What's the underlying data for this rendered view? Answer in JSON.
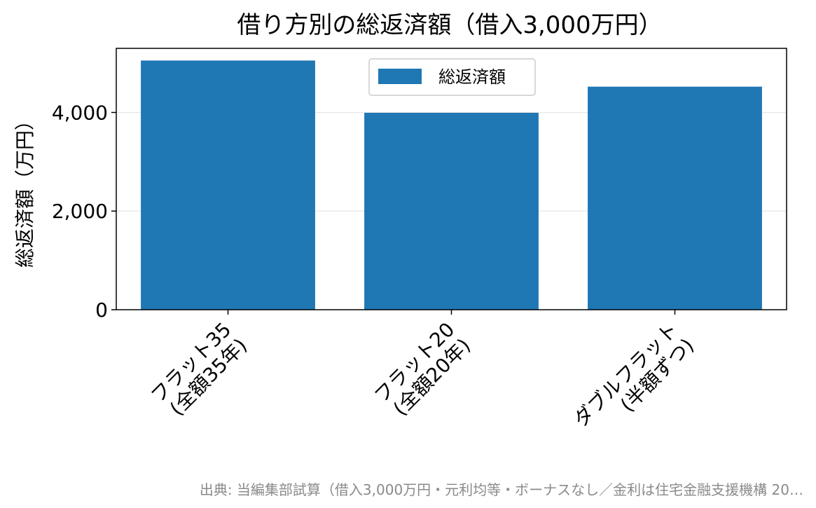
{
  "chart_data": {
    "type": "bar",
    "title": "借り方別の総返済額（借入3,000万円）",
    "xlabel": "",
    "ylabel": "総返済額（万円）",
    "categories": [
      [
        "フラット35",
        "(全額35年)"
      ],
      [
        "フラット20",
        "(全額20年)"
      ],
      [
        "ダブルフラット",
        "(半額ずつ)"
      ]
    ],
    "series": [
      {
        "name": "総返済額",
        "values": [
          5053,
          3993,
          4523
        ]
      }
    ],
    "ylim": [
      0,
      5300
    ],
    "yticks": [
      0,
      2000,
      4000
    ],
    "ytick_labels": [
      "0",
      "2,000",
      "4,000"
    ],
    "grid": "y",
    "legend": "top-center",
    "colors": {
      "bar": "#1f77b4"
    }
  },
  "source": "出典: 当編集部試算（借入3,000万円・元利均等・ボーナスなし／金利は住宅金融支援機構 20…"
}
